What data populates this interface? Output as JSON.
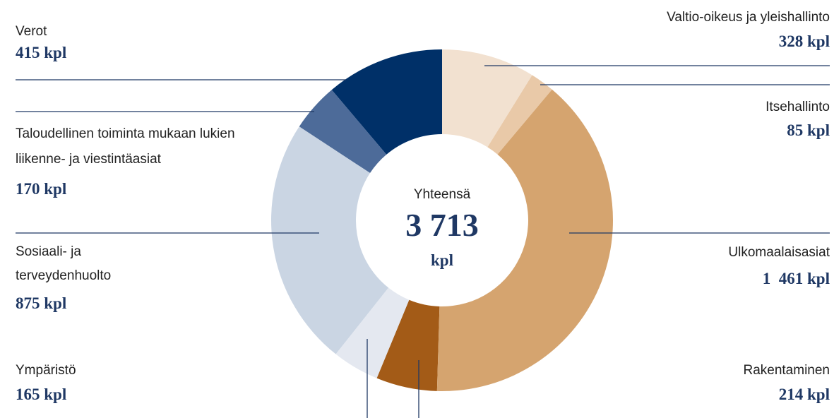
{
  "chart_data": {
    "type": "donut",
    "categories": [
      "Valtio-oikeus ja yleishallinto",
      "Itsehallinto",
      "Ulkomaalaisasiat",
      "Rakentaminen",
      "Ympäristö",
      "Sosiaali- ja terveydenhuolto",
      "Taloudellinen toiminta mukaan lukien liikenne- ja viestintäasiat",
      "Verot"
    ],
    "values": [
      328,
      85,
      1461,
      214,
      165,
      875,
      170,
      415
    ],
    "value_labels": [
      "328 kpl",
      "85 kpl",
      "1  461 kpl",
      "214 kpl",
      "165 kpl",
      "875 kpl",
      "170 kpl",
      "415 kpl"
    ],
    "colors": [
      "#f2e1d0",
      "#e9c9a8",
      "#d5a46f",
      "#a35b17",
      "#e4e8f0",
      "#cad5e3",
      "#4d6b99",
      "#003068"
    ],
    "center_label": "Yhteensä",
    "total": {
      "value": 3713,
      "label": "3 713"
    },
    "total_unit": "kpl"
  }
}
